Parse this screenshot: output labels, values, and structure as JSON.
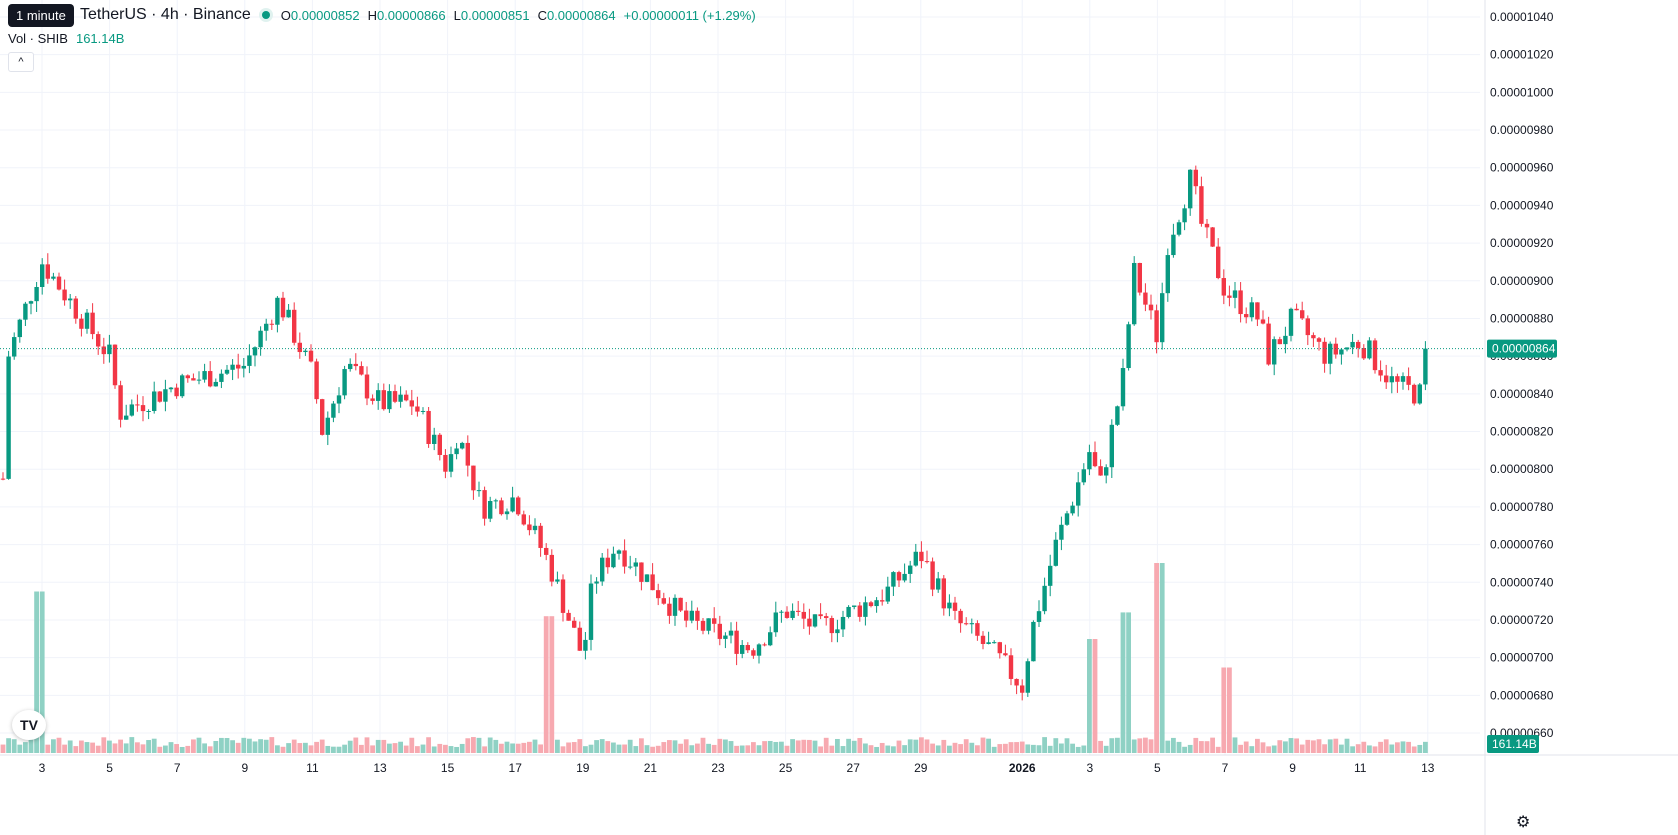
{
  "tooltip": "1 minute",
  "header": {
    "symbol_title": "TetherUS · 4h · Binance",
    "open_key": "O",
    "open": "0.00000852",
    "high_key": "H",
    "high": "0.00000866",
    "low_key": "L",
    "low": "0.00000851",
    "close_key": "C",
    "close": "0.00000864",
    "change": "+0.00000011 (+1.29%)"
  },
  "volume_legend": {
    "label": "Vol · SHIB",
    "value": "161.14B"
  },
  "collapse_glyph": "^",
  "logo_text": "TV",
  "settings_icon": "gear-icon",
  "colors": {
    "up": "#089981",
    "down": "#f23645",
    "up_volume": "#8fd1c4",
    "down_volume": "#f7a9b0",
    "grid": "#f0f3fa",
    "axis_text": "#131722"
  },
  "chart_data": {
    "type": "candlestick",
    "y_axis_ticks": [
      "0.00000660",
      "0.00000680",
      "0.00000700",
      "0.00000720",
      "0.00000740",
      "0.00000760",
      "0.00000780",
      "0.00000800",
      "0.00000820",
      "0.00000840",
      "0.00000860",
      "0.00000880",
      "0.00000900",
      "0.00000920",
      "0.00000940",
      "0.00000960",
      "0.00000980",
      "0.00001000",
      "0.00001020",
      "0.00001040"
    ],
    "ylim": [
      6.6e-06,
      1.04e-05
    ],
    "x_axis_ticks": [
      "3",
      "5",
      "7",
      "9",
      "11",
      "13",
      "15",
      "17",
      "19",
      "21",
      "23",
      "25",
      "27",
      "29",
      "2026",
      "3",
      "5",
      "7",
      "9",
      "11",
      "13"
    ],
    "last_price_label": "0.00000864",
    "last_price": 8.64e-06,
    "last_volume_label": "161.14B",
    "interval": "4h",
    "key_points": [
      {
        "date": "Dec 2",
        "price": 7.95e-06
      },
      {
        "date": "Dec 2",
        "price": 8.6e-06
      },
      {
        "date": "Dec 3",
        "price": 9.1e-06
      },
      {
        "date": "Dec 5",
        "price": 8.6e-06
      },
      {
        "date": "Dec 5",
        "price": 8.3e-06
      },
      {
        "date": "Dec 7",
        "price": 8.45e-06
      },
      {
        "date": "Dec 9",
        "price": 8.55e-06
      },
      {
        "date": "Dec 10",
        "price": 8.9e-06
      },
      {
        "date": "Dec 11",
        "price": 8.5e-06
      },
      {
        "date": "Dec 11",
        "price": 8.2e-06
      },
      {
        "date": "Dec 12",
        "price": 8.55e-06
      },
      {
        "date": "Dec 13",
        "price": 8.35e-06
      },
      {
        "date": "Dec 14",
        "price": 8.35e-06
      },
      {
        "date": "Dec 15",
        "price": 8e-06
      },
      {
        "date": "Dec 15",
        "price": 8.2e-06
      },
      {
        "date": "Dec 16",
        "price": 7.8e-06
      },
      {
        "date": "Dec 17",
        "price": 7.85e-06
      },
      {
        "date": "Dec 18",
        "price": 7.5e-06
      },
      {
        "date": "Dec 19",
        "price": 7e-06
      },
      {
        "date": "Dec 19",
        "price": 7.4e-06
      },
      {
        "date": "Dec 20",
        "price": 7.6e-06
      },
      {
        "date": "Dec 21",
        "price": 7.4e-06
      },
      {
        "date": "Dec 22",
        "price": 7.2e-06
      },
      {
        "date": "Dec 24",
        "price": 7.05e-06
      },
      {
        "date": "Dec 25",
        "price": 7.25e-06
      },
      {
        "date": "Dec 26",
        "price": 7.15e-06
      },
      {
        "date": "Dec 28",
        "price": 7.35e-06
      },
      {
        "date": "Dec 29",
        "price": 7.55e-06
      },
      {
        "date": "Dec 30",
        "price": 7.2e-06
      },
      {
        "date": "Dec 31",
        "price": 7.05e-06
      },
      {
        "date": "Jan 1",
        "price": 6.85e-06
      },
      {
        "date": "Jan 1",
        "price": 7.15e-06
      },
      {
        "date": "Jan 2",
        "price": 7.6e-06
      },
      {
        "date": "Jan 3",
        "price": 8.1e-06
      },
      {
        "date": "Jan 3",
        "price": 7.9e-06
      },
      {
        "date": "Jan 4",
        "price": 8.5e-06
      },
      {
        "date": "Jan 4",
        "price": 9.05e-06
      },
      {
        "date": "Jan 5",
        "price": 8.7e-06
      },
      {
        "date": "Jan 5",
        "price": 9.2e-06
      },
      {
        "date": "Jan 6",
        "price": 9.55e-06
      },
      {
        "date": "Jan 6",
        "price": 9.3e-06
      },
      {
        "date": "Jan 7",
        "price": 8.95e-06
      },
      {
        "date": "Jan 8",
        "price": 8.8e-06
      },
      {
        "date": "Jan 8",
        "price": 8.6e-06
      },
      {
        "date": "Jan 9",
        "price": 8.8e-06
      },
      {
        "date": "Jan 10",
        "price": 8.6e-06
      },
      {
        "date": "Jan 11",
        "price": 8.68e-06
      },
      {
        "date": "Jan 12",
        "price": 8.45e-06
      },
      {
        "date": "Jan 13",
        "price": 8.38e-06
      },
      {
        "date": "Jan 13",
        "price": 8.64e-06
      }
    ],
    "volume_spikes": [
      {
        "date": "Dec 3",
        "value": 0.85
      },
      {
        "date": "Dec 18",
        "value": 0.72
      },
      {
        "date": "Jan 3",
        "value": 0.6
      },
      {
        "date": "Jan 4",
        "value": 0.74
      },
      {
        "date": "Jan 5",
        "value": 1.0
      },
      {
        "date": "Jan 7",
        "value": 0.45
      }
    ],
    "grid": true
  }
}
